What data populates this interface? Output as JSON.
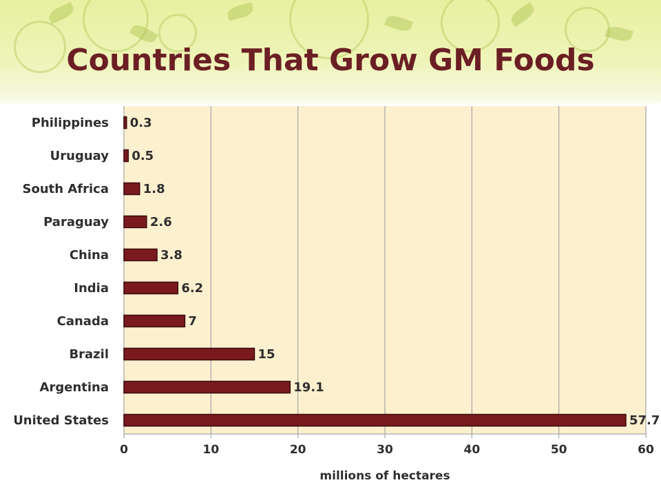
{
  "slide": {
    "title": "Countries That Grow GM Foods"
  },
  "colors": {
    "title": "#6b1f24",
    "bar_fill": "#7a1a1e",
    "bar_stroke": "#3a0a0c",
    "plot_bg": "#fdf0cf",
    "grid": "#a6a6a6",
    "text": "#2e2e2e"
  },
  "chart_data": {
    "type": "bar",
    "orientation": "horizontal",
    "categories": [
      "Philippines",
      "Uruguay",
      "South Africa",
      "Paraguay",
      "China",
      "India",
      "Canada",
      "Brazil",
      "Argentina",
      "United States"
    ],
    "values": [
      0.3,
      0.5,
      1.8,
      2.6,
      3.8,
      6.2,
      7,
      15,
      19.1,
      57.7
    ],
    "data_labels": [
      "0.3",
      "0.5",
      "1.8",
      "2.6",
      "3.8",
      "6.2",
      "7",
      "15",
      "19.1",
      "57.7"
    ],
    "xlabel": "millions of hectares",
    "xlim": [
      0,
      60
    ],
    "xticks": [
      0,
      10,
      20,
      30,
      40,
      50,
      60
    ],
    "grid": true
  }
}
